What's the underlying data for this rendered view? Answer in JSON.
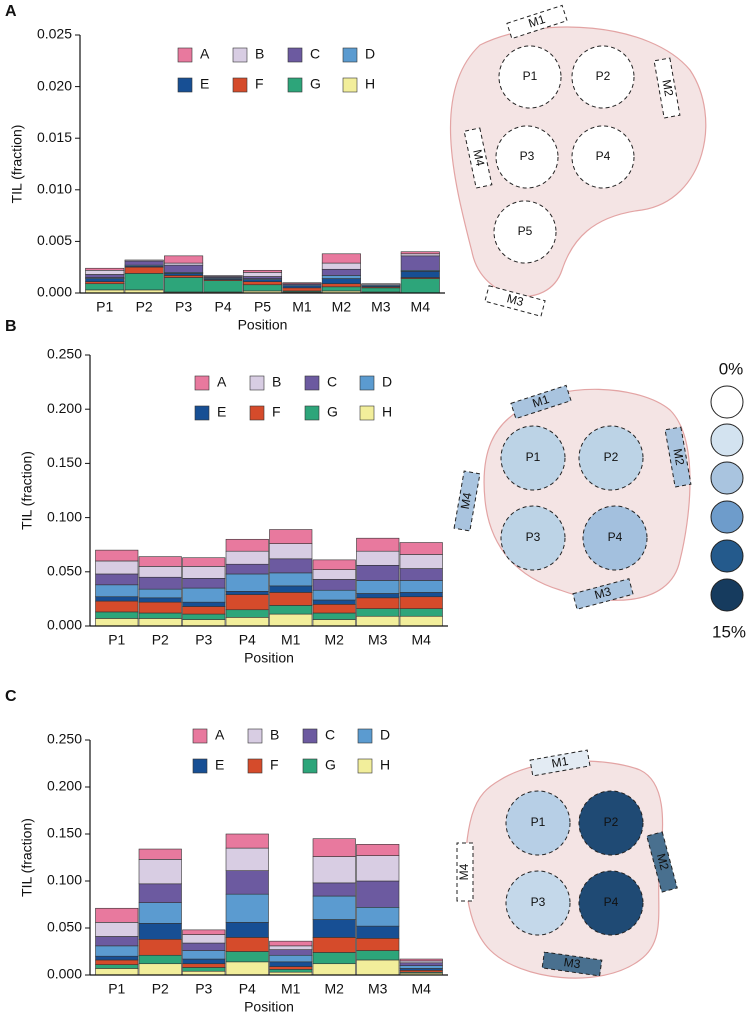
{
  "chart_data": [
    {
      "type": "bar",
      "panel": "A",
      "y_label": "TIL (fraction)",
      "x_label": "Position",
      "categories": [
        "P1",
        "P2",
        "P3",
        "P4",
        "P5",
        "M1",
        "M2",
        "M3",
        "M4"
      ],
      "ylim": [
        0,
        0.025
      ],
      "yticks": [
        {
          "value": 0,
          "label": "0.000"
        },
        {
          "value": 0.005,
          "label": "0.005"
        },
        {
          "value": 0.01,
          "label": "0.010"
        },
        {
          "value": 0.015,
          "label": "0.015"
        },
        {
          "value": 0.02,
          "label": "0.020"
        },
        {
          "value": 0.025,
          "label": "0.025"
        }
      ],
      "series": [
        {
          "name": "A",
          "color": "#e8799e",
          "values": [
            0.0002,
            0.0,
            0.0007,
            0.0,
            0.0002,
            0.0001,
            0.0009,
            0.0,
            0.0002
          ]
        },
        {
          "name": "B",
          "color": "#d8cde3",
          "values": [
            0.0004,
            0.0001,
            0.0002,
            0.0001,
            0.0004,
            0.0,
            0.0006,
            0.0001,
            0.0002
          ]
        },
        {
          "name": "C",
          "color": "#6c5aa0",
          "values": [
            0.0003,
            0.0004,
            0.0007,
            0.0001,
            0.0002,
            0.0001,
            0.0006,
            0.0,
            0.0014
          ]
        },
        {
          "name": "D",
          "color": "#5b9bd0",
          "values": [
            0.0001,
            0.0001,
            0.0001,
            0.0001,
            0.0001,
            0.0001,
            0.0003,
            0.0001,
            0.0001
          ]
        },
        {
          "name": "E",
          "color": "#174f94",
          "values": [
            0.0003,
            0.0001,
            0.0002,
            0.0001,
            0.0002,
            0.0002,
            0.0005,
            0.0001,
            0.0006
          ]
        },
        {
          "name": "F",
          "color": "#d54b2b",
          "values": [
            0.0002,
            0.0006,
            0.0002,
            0.0001,
            0.0003,
            0.0003,
            0.0003,
            0.0001,
            0.0001
          ]
        },
        {
          "name": "G",
          "color": "#2da57a",
          "values": [
            0.0006,
            0.0016,
            0.0014,
            0.0011,
            0.0006,
            0.0001,
            0.0004,
            0.0004,
            0.0014
          ]
        },
        {
          "name": "H",
          "color": "#f2ee9b",
          "values": [
            0.0003,
            0.0003,
            0.0001,
            0.0001,
            0.0002,
            0.0001,
            0.0002,
            0.0001,
            0.0
          ]
        }
      ]
    },
    {
      "type": "bar",
      "panel": "B",
      "y_label": "TIL (fraction)",
      "x_label": "Position",
      "categories": [
        "P1",
        "P2",
        "P3",
        "P4",
        "M1",
        "M2",
        "M3",
        "M4"
      ],
      "ylim": [
        0,
        0.25
      ],
      "yticks": [
        {
          "value": 0,
          "label": "0.000"
        },
        {
          "value": 0.05,
          "label": "0.050"
        },
        {
          "value": 0.1,
          "label": "0.100"
        },
        {
          "value": 0.15,
          "label": "0.150"
        },
        {
          "value": 0.2,
          "label": "0.200"
        },
        {
          "value": 0.25,
          "label": "0.250"
        }
      ],
      "series": [
        {
          "name": "A",
          "color": "#e8799e",
          "values": [
            0.01,
            0.009,
            0.008,
            0.011,
            0.013,
            0.009,
            0.012,
            0.011
          ]
        },
        {
          "name": "B",
          "color": "#d8cde3",
          "values": [
            0.012,
            0.01,
            0.011,
            0.012,
            0.014,
            0.009,
            0.013,
            0.013
          ]
        },
        {
          "name": "C",
          "color": "#6c5aa0",
          "values": [
            0.01,
            0.011,
            0.009,
            0.009,
            0.013,
            0.01,
            0.014,
            0.011
          ]
        },
        {
          "name": "D",
          "color": "#5b9bd0",
          "values": [
            0.011,
            0.008,
            0.013,
            0.016,
            0.012,
            0.009,
            0.012,
            0.011
          ]
        },
        {
          "name": "E",
          "color": "#174f94",
          "values": [
            0.004,
            0.004,
            0.004,
            0.003,
            0.006,
            0.004,
            0.004,
            0.004
          ]
        },
        {
          "name": "F",
          "color": "#d54b2b",
          "values": [
            0.01,
            0.01,
            0.007,
            0.014,
            0.012,
            0.008,
            0.01,
            0.011
          ]
        },
        {
          "name": "G",
          "color": "#2da57a",
          "values": [
            0.006,
            0.005,
            0.005,
            0.007,
            0.008,
            0.006,
            0.007,
            0.007
          ]
        },
        {
          "name": "H",
          "color": "#f2ee9b",
          "values": [
            0.007,
            0.007,
            0.006,
            0.008,
            0.011,
            0.006,
            0.009,
            0.009
          ]
        }
      ]
    },
    {
      "type": "bar",
      "panel": "C",
      "y_label": "TIL (fraction)",
      "x_label": "Position",
      "categories": [
        "P1",
        "P2",
        "P3",
        "P4",
        "M1",
        "M2",
        "M3",
        "M4"
      ],
      "ylim": [
        0,
        0.25
      ],
      "yticks": [
        {
          "value": 0,
          "label": "0.000"
        },
        {
          "value": 0.05,
          "label": "0.050"
        },
        {
          "value": 0.1,
          "label": "0.100"
        },
        {
          "value": 0.15,
          "label": "0.150"
        },
        {
          "value": 0.2,
          "label": "0.200"
        },
        {
          "value": 0.25,
          "label": "0.250"
        }
      ],
      "series": [
        {
          "name": "A",
          "color": "#e8799e",
          "values": [
            0.015,
            0.011,
            0.005,
            0.015,
            0.005,
            0.019,
            0.012,
            0.002
          ]
        },
        {
          "name": "B",
          "color": "#d8cde3",
          "values": [
            0.015,
            0.026,
            0.009,
            0.024,
            0.004,
            0.028,
            0.027,
            0.002
          ]
        },
        {
          "name": "C",
          "color": "#6c5aa0",
          "values": [
            0.01,
            0.02,
            0.008,
            0.025,
            0.006,
            0.014,
            0.028,
            0.003
          ]
        },
        {
          "name": "D",
          "color": "#5b9bd0",
          "values": [
            0.011,
            0.022,
            0.009,
            0.03,
            0.007,
            0.025,
            0.02,
            0.003
          ]
        },
        {
          "name": "E",
          "color": "#174f94",
          "values": [
            0.004,
            0.017,
            0.005,
            0.016,
            0.005,
            0.019,
            0.013,
            0.002
          ]
        },
        {
          "name": "F",
          "color": "#d54b2b",
          "values": [
            0.005,
            0.017,
            0.004,
            0.015,
            0.003,
            0.016,
            0.013,
            0.002
          ]
        },
        {
          "name": "G",
          "color": "#2da57a",
          "values": [
            0.004,
            0.009,
            0.004,
            0.011,
            0.003,
            0.012,
            0.01,
            0.001
          ]
        },
        {
          "name": "H",
          "color": "#f2ee9b",
          "values": [
            0.007,
            0.012,
            0.004,
            0.014,
            0.003,
            0.012,
            0.016,
            0.002
          ]
        }
      ]
    }
  ],
  "diagrams": [
    {
      "pockets": [
        "P1",
        "P2",
        "P3",
        "P4",
        "P5"
      ],
      "margins": [
        "M1",
        "M2",
        "M3",
        "M4"
      ]
    },
    {
      "pockets": [
        "P1",
        "P2",
        "P3",
        "P4"
      ],
      "margins": [
        "M1",
        "M2",
        "M3",
        "M4"
      ]
    },
    {
      "pockets": [
        "P1",
        "P2",
        "P3",
        "P4"
      ],
      "margins": [
        "M1",
        "M2",
        "M3",
        "M4"
      ]
    }
  ],
  "scale": {
    "min_label": "0%",
    "max_label": "15%"
  }
}
